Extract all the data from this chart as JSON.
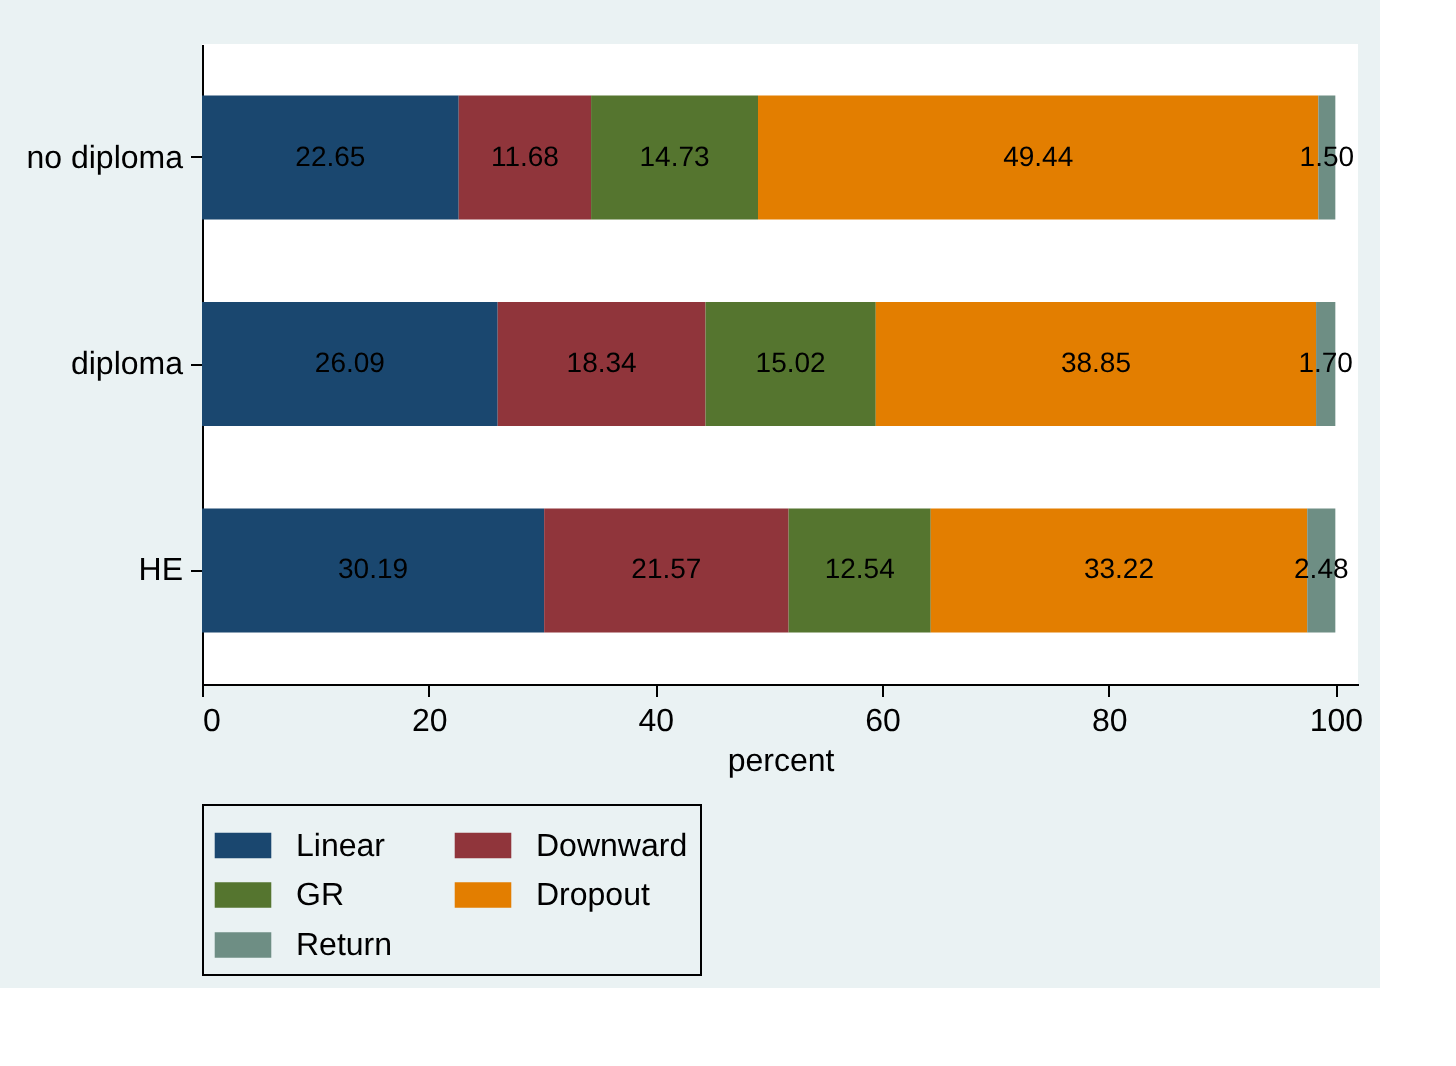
{
  "chart_data": {
    "type": "bar",
    "orientation": "horizontal",
    "stacked": true,
    "categories": [
      "no diploma",
      "diploma",
      "HE"
    ],
    "xlabel": "percent",
    "xlim": [
      0,
      102
    ],
    "xticks": [
      0,
      20,
      40,
      60,
      80,
      100
    ],
    "grid": false,
    "legend": "bottom",
    "series": [
      {
        "name": "Linear",
        "color": "#1a476f",
        "values": [
          22.65,
          26.09,
          30.19
        ],
        "value_labels": [
          "22.65",
          "26.09",
          "30.19"
        ]
      },
      {
        "name": "Downward",
        "color": "#90353b",
        "values": [
          11.68,
          18.34,
          21.57
        ],
        "value_labels": [
          "11.68",
          "18.34",
          "21.57"
        ]
      },
      {
        "name": "GR",
        "color": "#55752f",
        "values": [
          14.73,
          15.02,
          12.54
        ],
        "value_labels": [
          "14.73",
          "15.02",
          "12.54"
        ]
      },
      {
        "name": "Dropout",
        "color": "#e37e00",
        "values": [
          49.44,
          38.85,
          33.22
        ],
        "value_labels": [
          "49.44",
          "38.85",
          "33.22"
        ]
      },
      {
        "name": "Return",
        "color": "#6e8e84",
        "values": [
          1.5,
          1.7,
          2.48
        ],
        "value_labels": [
          "1.50",
          "1.70",
          "2.48"
        ]
      }
    ]
  }
}
